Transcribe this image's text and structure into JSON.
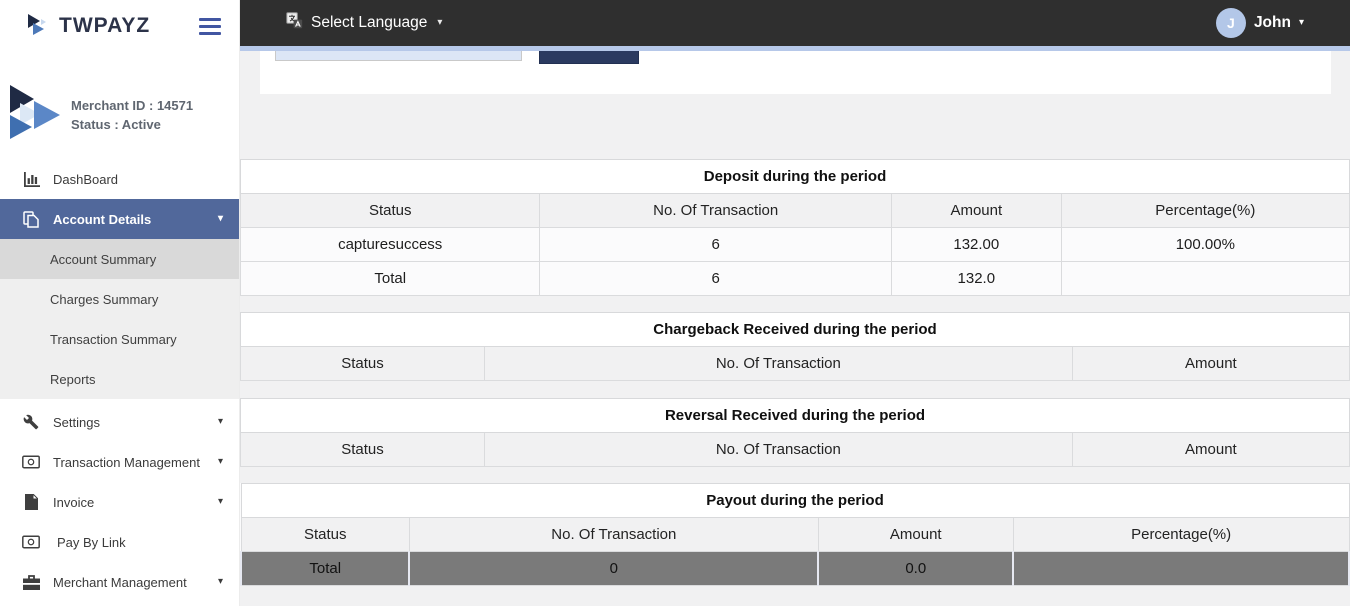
{
  "brand": {
    "name": "TWPAYZ"
  },
  "topbar": {
    "language_label": "Select Language",
    "user_initial": "J",
    "user_name": "John"
  },
  "merchant": {
    "id_label": "Merchant ID : 14571",
    "status_label": "Status : Active"
  },
  "sidebar": {
    "items": [
      {
        "label": "DashBoard",
        "icon": "bar-chart-icon"
      },
      {
        "label": "Account Details",
        "icon": "copy-icon",
        "active": true
      },
      {
        "label": "Settings",
        "icon": "wrench-icon"
      },
      {
        "label": "Transaction Management",
        "icon": "money-icon"
      },
      {
        "label": "Invoice",
        "icon": "file-icon"
      },
      {
        "label": "Pay By Link",
        "icon": "money-icon"
      },
      {
        "label": "Merchant Management",
        "icon": "briefcase-icon"
      }
    ],
    "account_submenu": [
      {
        "label": "Account Summary",
        "selected": true
      },
      {
        "label": "Charges Summary"
      },
      {
        "label": "Transaction Summary"
      },
      {
        "label": "Reports"
      }
    ]
  },
  "search": {
    "value": ""
  },
  "glyphs": {
    "caret_down": "▾"
  },
  "tables": {
    "deposit": {
      "title": "Deposit during the period",
      "headers": [
        "Status",
        "No. Of Transaction",
        "Amount",
        "Percentage(%)"
      ],
      "rows": [
        [
          "capturesuccess",
          "6",
          "132.00",
          "100.00%"
        ],
        [
          "Total",
          "6",
          "132.0",
          ""
        ]
      ]
    },
    "chargeback": {
      "title": "Chargeback Received during the period",
      "headers": [
        "Status",
        "No. Of Transaction",
        "Amount"
      ],
      "rows": []
    },
    "reversal": {
      "title": "Reversal Received during the period",
      "headers": [
        "Status",
        "No. Of Transaction",
        "Amount"
      ],
      "rows": []
    },
    "payout": {
      "title": "Payout during the period",
      "headers": [
        "Status",
        "No. Of Transaction",
        "Amount",
        "Percentage(%)"
      ],
      "rows": [
        [
          "Total",
          "0",
          "0.0",
          ""
        ]
      ]
    }
  },
  "colors": {
    "navbar": "#2f2f2f",
    "sidebar_active": "#51689b",
    "top_strip": "#b6c8e9",
    "submit_button": "#2b3a60",
    "payout_total_row": "#7a7a7a",
    "avatar": "#b3c7e8",
    "search_input_bg": "#dce6f6"
  }
}
